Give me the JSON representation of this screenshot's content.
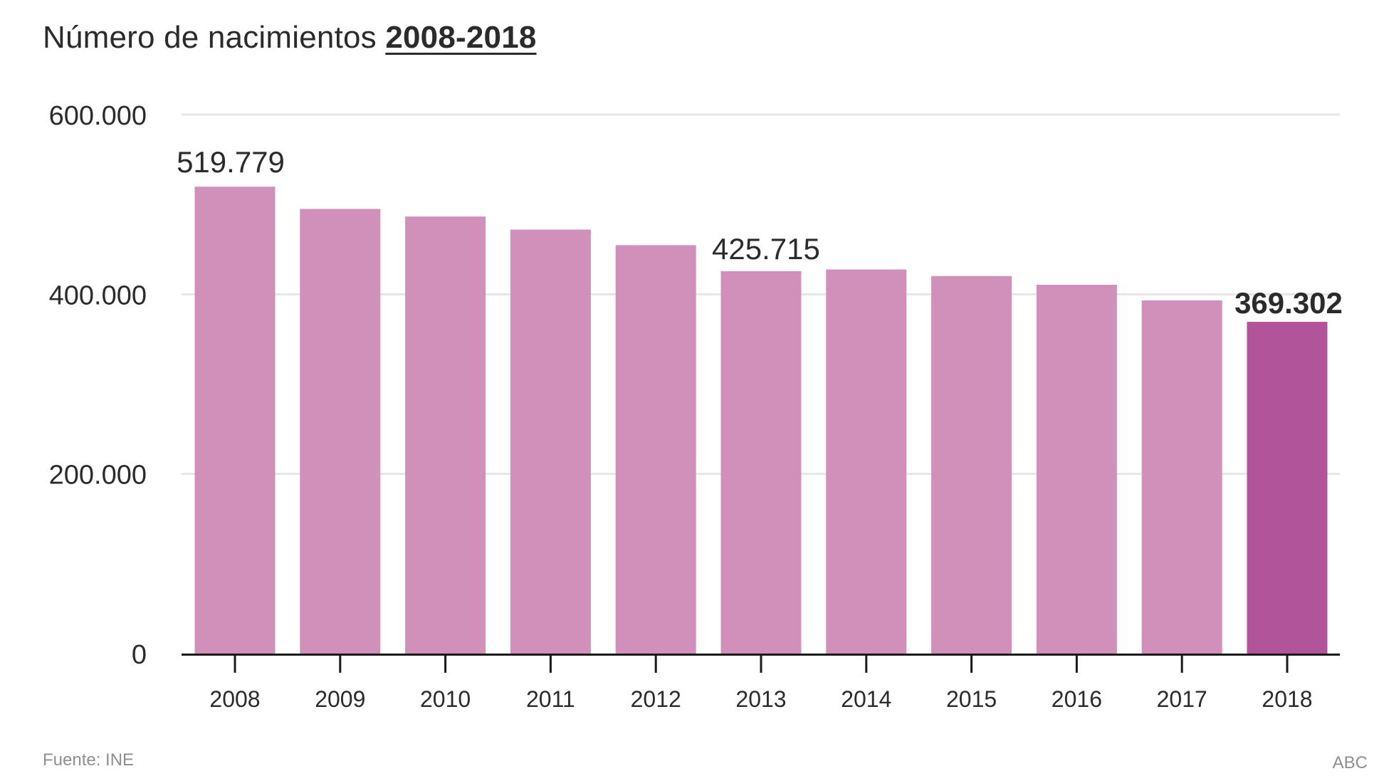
{
  "header": {
    "title_prefix": "Número de nacimientos",
    "title_range": "2008-2018"
  },
  "footer": {
    "source": "Fuente: INE",
    "credit": "ABC"
  },
  "colors": {
    "bar": "#d190ba",
    "highlight_bar": "#b15499",
    "gridline": "#e6e6e6",
    "axis": "#1a1a1a",
    "text": "#2b2b2b"
  },
  "chart_data": {
    "type": "bar",
    "title": "Número de nacimientos 2008-2018",
    "xlabel": "",
    "ylabel": "",
    "ylim": [
      0,
      600000
    ],
    "yticks": [
      0,
      200000,
      400000,
      600000
    ],
    "ytick_labels": [
      "0",
      "200.000",
      "400.000",
      "600.000"
    ],
    "categories": [
      "2008",
      "2009",
      "2010",
      "2011",
      "2012",
      "2013",
      "2014",
      "2015",
      "2016",
      "2017",
      "2018"
    ],
    "values": [
      519779,
      494997,
      486575,
      471999,
      454648,
      425715,
      427595,
      420290,
      410583,
      393181,
      369302
    ],
    "highlight_index": 10,
    "data_labels": [
      {
        "index": 0,
        "text": "519.779",
        "bold": false
      },
      {
        "index": 5,
        "text": "425.715",
        "bold": false
      },
      {
        "index": 10,
        "text": "369.302",
        "bold": true
      }
    ],
    "grid": true
  }
}
